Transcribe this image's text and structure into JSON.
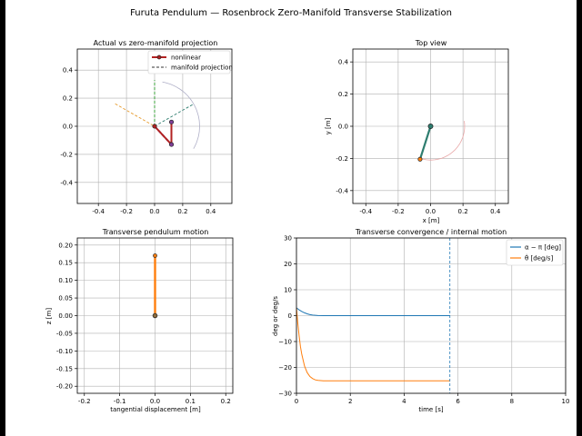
{
  "figure": {
    "suptitle": "Furuta Pendulum — Rosenbrock Zero-Manifold Transverse Stabilization",
    "background": "#ffffff",
    "frame_color": "#000000"
  },
  "colors": {
    "nonlinear": "#b22222",
    "projection": "#7f3f98",
    "blue": "#1f77b4",
    "orange": "#ff7f0e",
    "teal": "#2e7d6f",
    "green_dashed": "#2ca02c",
    "orange_dashed": "#e69a2b",
    "trace_pink": "#e8a6a6",
    "trace_grey": "#b0b0c8"
  },
  "chart_data": [
    {
      "id": "projection",
      "type": "line",
      "title": "Actual vs zero-manifold projection",
      "xlabel": "",
      "ylabel": "",
      "xlim": [
        -0.55,
        0.55
      ],
      "ylim": [
        -0.55,
        0.55
      ],
      "xticks": [
        "-0.4",
        "-0.2",
        "0.0",
        "0.2",
        "0.4"
      ],
      "yticks": [
        "-0.4",
        "-0.2",
        "0.0",
        "0.2",
        "0.4"
      ],
      "xtick_values": [
        -0.4,
        -0.2,
        0.0,
        0.2,
        0.4
      ],
      "ytick_values": [
        -0.4,
        -0.2,
        0.0,
        0.2,
        0.4
      ],
      "grid": true,
      "legend_position": "top-right",
      "legend": [
        {
          "label": "nonlinear",
          "style": "solid-marker"
        },
        {
          "label": "manifold projection",
          "style": "dashed"
        }
      ],
      "series": [
        {
          "name": "nonlinear",
          "x": [
            0.0,
            0.12,
            0.12
          ],
          "y": [
            0.0,
            -0.13,
            0.03
          ]
        },
        {
          "name": "manifold projection",
          "x": [
            0.0,
            0.12,
            0.12
          ],
          "y": [
            0.0,
            -0.13,
            0.03
          ]
        }
      ],
      "guides": {
        "green_dashed": {
          "x": [
            0.0,
            0.0
          ],
          "y": [
            0.0,
            0.33
          ]
        },
        "orange_dashed": {
          "x": [
            -0.28,
            0.0
          ],
          "y": [
            0.16,
            0.0
          ]
        },
        "teal_dashed": {
          "x": [
            0.0,
            0.28
          ],
          "y": [
            0.0,
            0.16
          ]
        }
      },
      "trace": {
        "center": [
          0.0,
          0.0
        ],
        "radius": 0.32,
        "from_deg": -30,
        "to_deg": 80
      }
    },
    {
      "id": "top_view",
      "type": "line",
      "title": "Top view",
      "xlabel": "x [m]",
      "ylabel": "y [m]",
      "xlim": [
        -0.48,
        0.48
      ],
      "ylim": [
        -0.48,
        0.48
      ],
      "xticks": [
        "-0.4",
        "-0.2",
        "0.0",
        "0.2",
        "0.4"
      ],
      "yticks": [
        "-0.4",
        "-0.2",
        "0.0",
        "0.2",
        "0.4"
      ],
      "xtick_values": [
        -0.4,
        -0.2,
        0.0,
        0.2,
        0.4
      ],
      "ytick_values": [
        -0.4,
        -0.2,
        0.0,
        0.2,
        0.4
      ],
      "grid": true,
      "series": [
        {
          "name": "arm",
          "x": [
            0.0,
            -0.065
          ],
          "y": [
            0.0,
            -0.205
          ]
        }
      ],
      "trace": {
        "center": [
          0.0,
          0.0
        ],
        "radius": 0.21,
        "from_deg": -105,
        "to_deg": 10
      }
    },
    {
      "id": "transverse",
      "type": "line",
      "title": "Transverse pendulum motion",
      "xlabel": "tangential displacement [m]",
      "ylabel": "z [m]",
      "xlim": [
        -0.22,
        0.22
      ],
      "ylim": [
        -0.22,
        0.22
      ],
      "xticks": [
        "-0.2",
        "-0.1",
        "0.0",
        "0.1",
        "0.2"
      ],
      "yticks": [
        "-0.20",
        "-0.15",
        "-0.10",
        "-0.05",
        "0.00",
        "0.05",
        "0.10",
        "0.15",
        "0.20"
      ],
      "xtick_values": [
        -0.2,
        -0.1,
        0.0,
        0.1,
        0.2
      ],
      "ytick_values": [
        -0.2,
        -0.15,
        -0.1,
        -0.05,
        0.0,
        0.05,
        0.1,
        0.15,
        0.2
      ],
      "grid": true,
      "series": [
        {
          "name": "pendulum",
          "x": [
            0.0,
            0.0
          ],
          "y": [
            0.0,
            0.17
          ]
        }
      ]
    },
    {
      "id": "convergence",
      "type": "line",
      "title": "Transverse convergence / internal motion",
      "xlabel": "time [s]",
      "ylabel": "deg or deg/s",
      "xlim": [
        0,
        10
      ],
      "ylim": [
        -30,
        30
      ],
      "xticks": [
        "0",
        "2",
        "4",
        "6",
        "8",
        "10"
      ],
      "yticks": [
        "−30",
        "−20",
        "−10",
        "0",
        "10",
        "20",
        "30"
      ],
      "xtick_values": [
        0,
        2,
        4,
        6,
        8,
        10
      ],
      "ytick_values": [
        -30,
        -20,
        -10,
        0,
        10,
        20,
        30
      ],
      "grid": true,
      "legend_position": "top-right",
      "legend": [
        {
          "label": "α − π [deg]",
          "style": "blue"
        },
        {
          "label": "θ̇ [deg/s]",
          "style": "orange"
        }
      ],
      "current_time": 5.7,
      "series": [
        {
          "name": "α − π [deg]",
          "x": [
            0,
            0.1,
            0.2,
            0.3,
            0.4,
            0.5,
            0.6,
            0.8,
            1.0,
            1.5,
            2,
            3,
            4,
            5,
            5.7
          ],
          "y": [
            3,
            2.2,
            1.6,
            1.1,
            0.7,
            0.4,
            0.2,
            0.05,
            0,
            0,
            0,
            0,
            0,
            0,
            0
          ]
        },
        {
          "name": "θ̇ [deg/s]",
          "x": [
            0,
            0.05,
            0.1,
            0.15,
            0.2,
            0.3,
            0.4,
            0.5,
            0.6,
            0.7,
            0.8,
            1.0,
            1.2,
            1.5,
            2,
            3,
            4,
            5,
            5.7
          ],
          "y": [
            3,
            -3,
            -8,
            -12,
            -15,
            -19.5,
            -22,
            -23.5,
            -24.3,
            -24.8,
            -25,
            -25.2,
            -25.2,
            -25.2,
            -25.2,
            -25.2,
            -25.2,
            -25.2,
            -25.2
          ]
        }
      ]
    }
  ]
}
